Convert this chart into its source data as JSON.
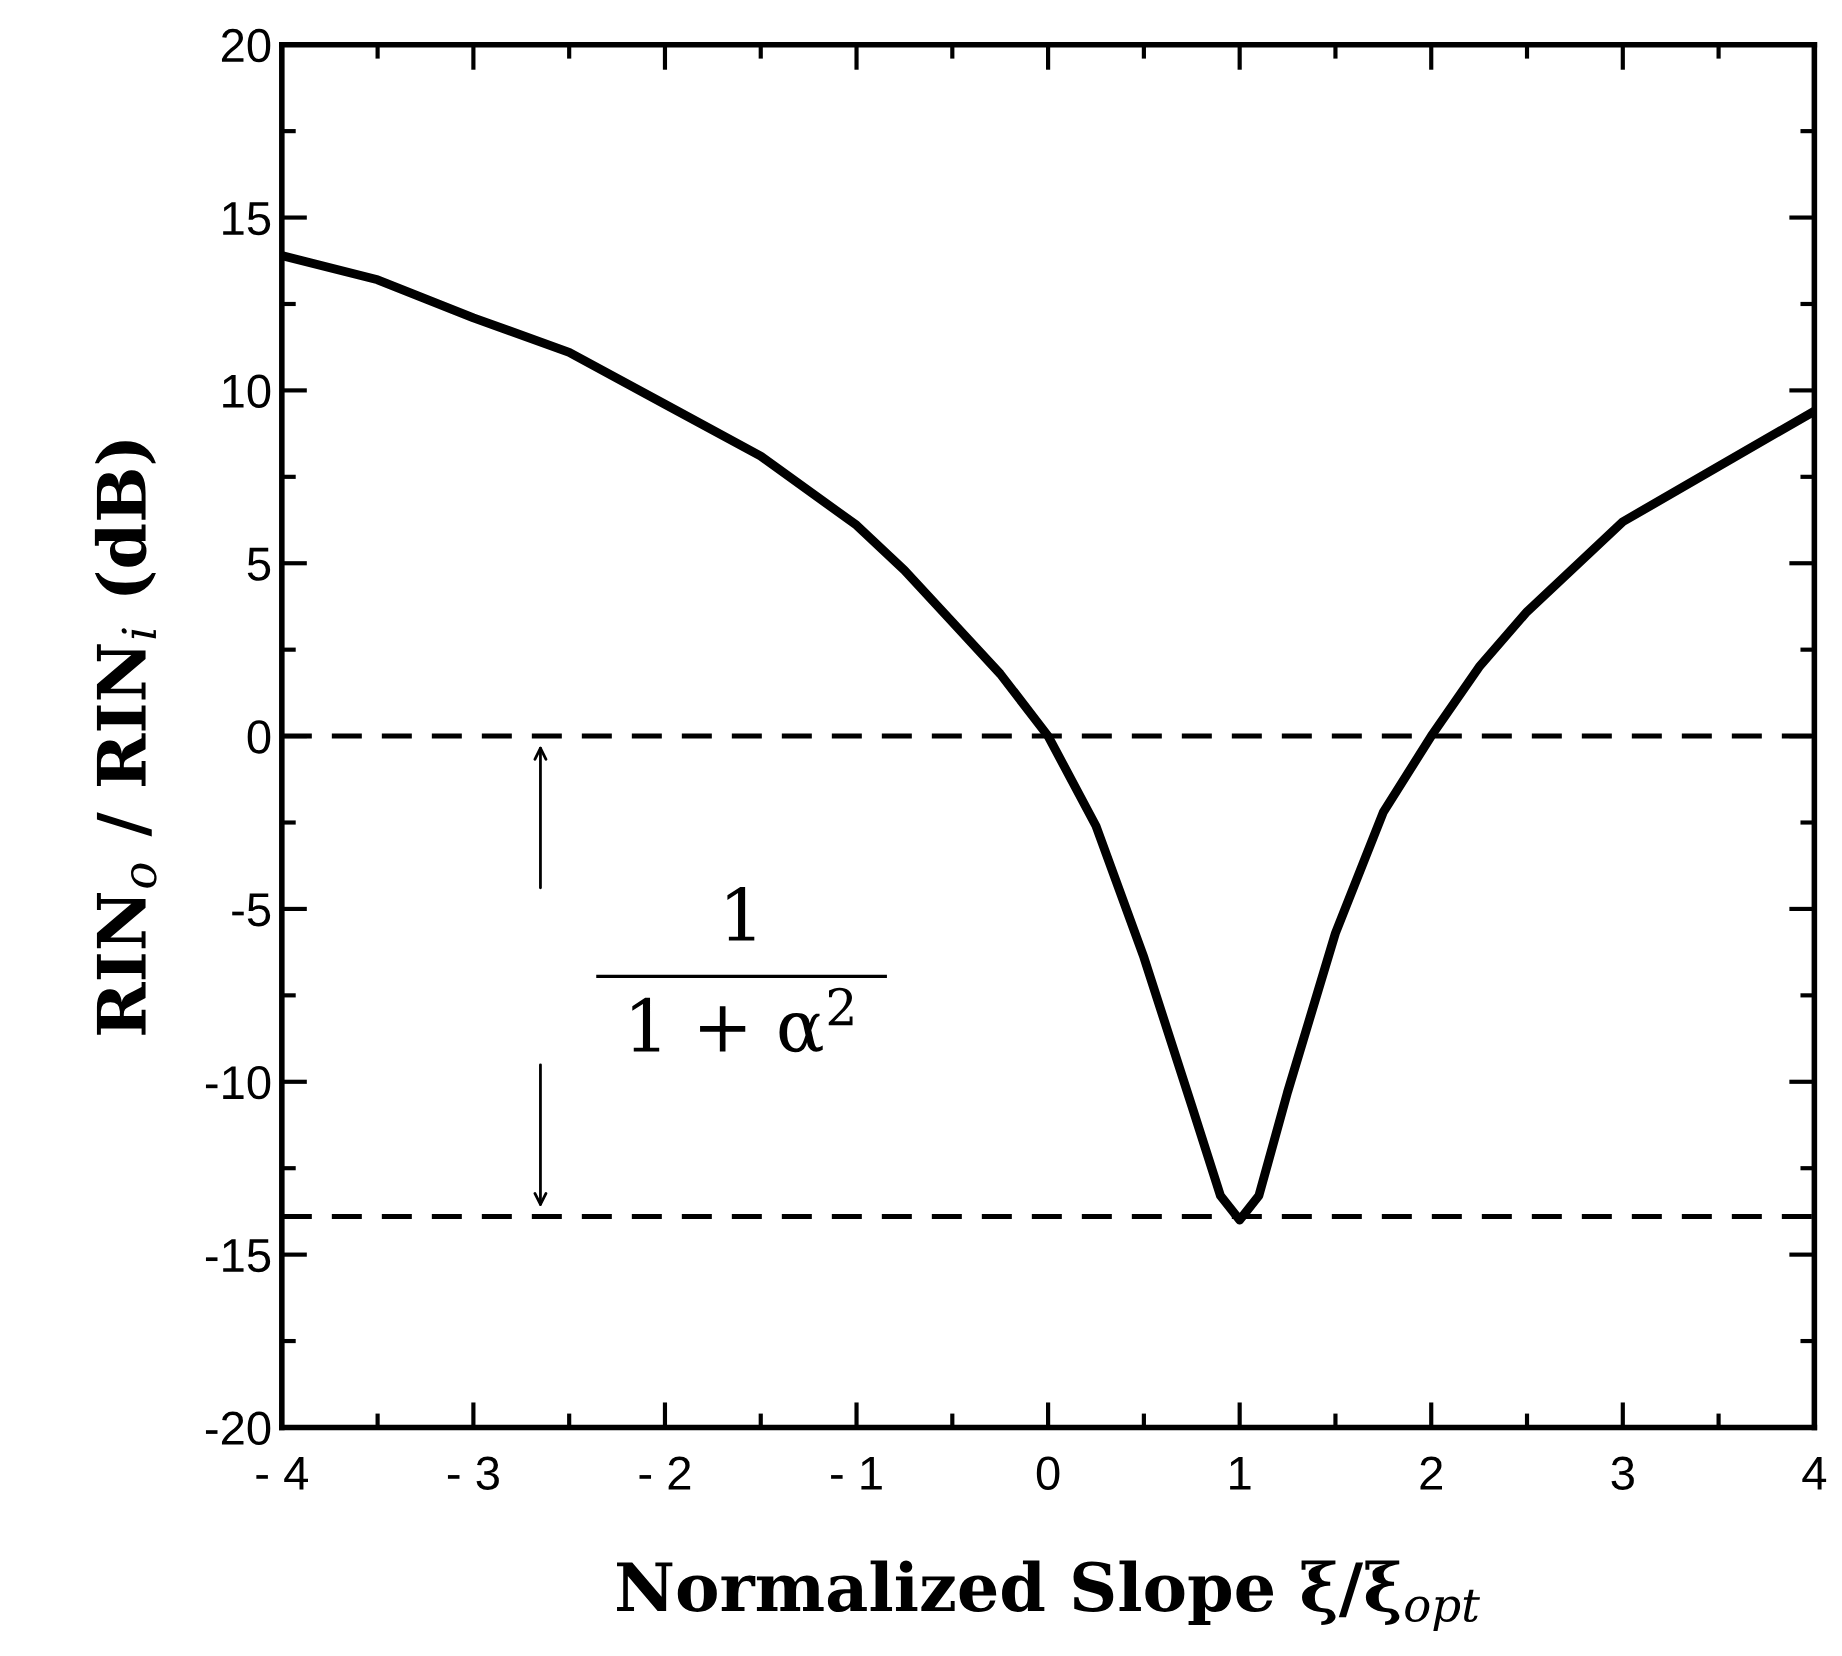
{
  "chart_data": {
    "type": "line",
    "xlabel": "Normalized Slope ξ/ξ$_{opt}$",
    "ylabel": "RIN$_{o}$ / RIN$_{i}$ (dB)",
    "x": [
      -4,
      -3.5,
      -3,
      -2.5,
      -2,
      -1.5,
      -1,
      -0.75,
      -0.5,
      -0.25,
      0,
      0.25,
      0.5,
      0.75,
      0.9,
      1,
      1.1,
      1.25,
      1.5,
      1.75,
      2,
      2.25,
      2.5,
      3,
      3.5,
      4
    ],
    "series": [
      {
        "color": "#000000",
        "values": [
          13.9,
          13.2,
          12.1,
          11.1,
          9.6,
          8.1,
          6.1,
          4.8,
          3.3,
          1.8,
          0,
          -2.6,
          -6.4,
          -10.7,
          -13.3,
          -14.0,
          -13.3,
          -10.3,
          -5.7,
          -2.2,
          0,
          2.0,
          3.6,
          6.2,
          7.8,
          9.4
        ]
      }
    ],
    "xlim": [
      -4,
      4
    ],
    "ylim": [
      -20,
      20
    ],
    "xticks": [
      {
        "value": -4,
        "label": "- 4"
      },
      {
        "value": -3,
        "label": "- 3"
      },
      {
        "value": -2,
        "label": "- 2"
      },
      {
        "value": -1,
        "label": "- 1"
      },
      0,
      1,
      2,
      3,
      4
    ],
    "yticks": [
      -20,
      -15,
      -10,
      -5,
      0,
      5,
      10,
      15,
      20
    ],
    "ref_lines": [
      {
        "axis": "y",
        "value": 0,
        "line_style": "dashed",
        "color": "#000000"
      },
      {
        "axis": "y",
        "value": -13.9,
        "line_style": "dashed",
        "color": "#000000"
      }
    ],
    "annotations": [
      "1",
      "1 + α$^{2}$"
    ],
    "grid": false,
    "legend": false,
    "marker": "none",
    "line_style": "solid"
  }
}
